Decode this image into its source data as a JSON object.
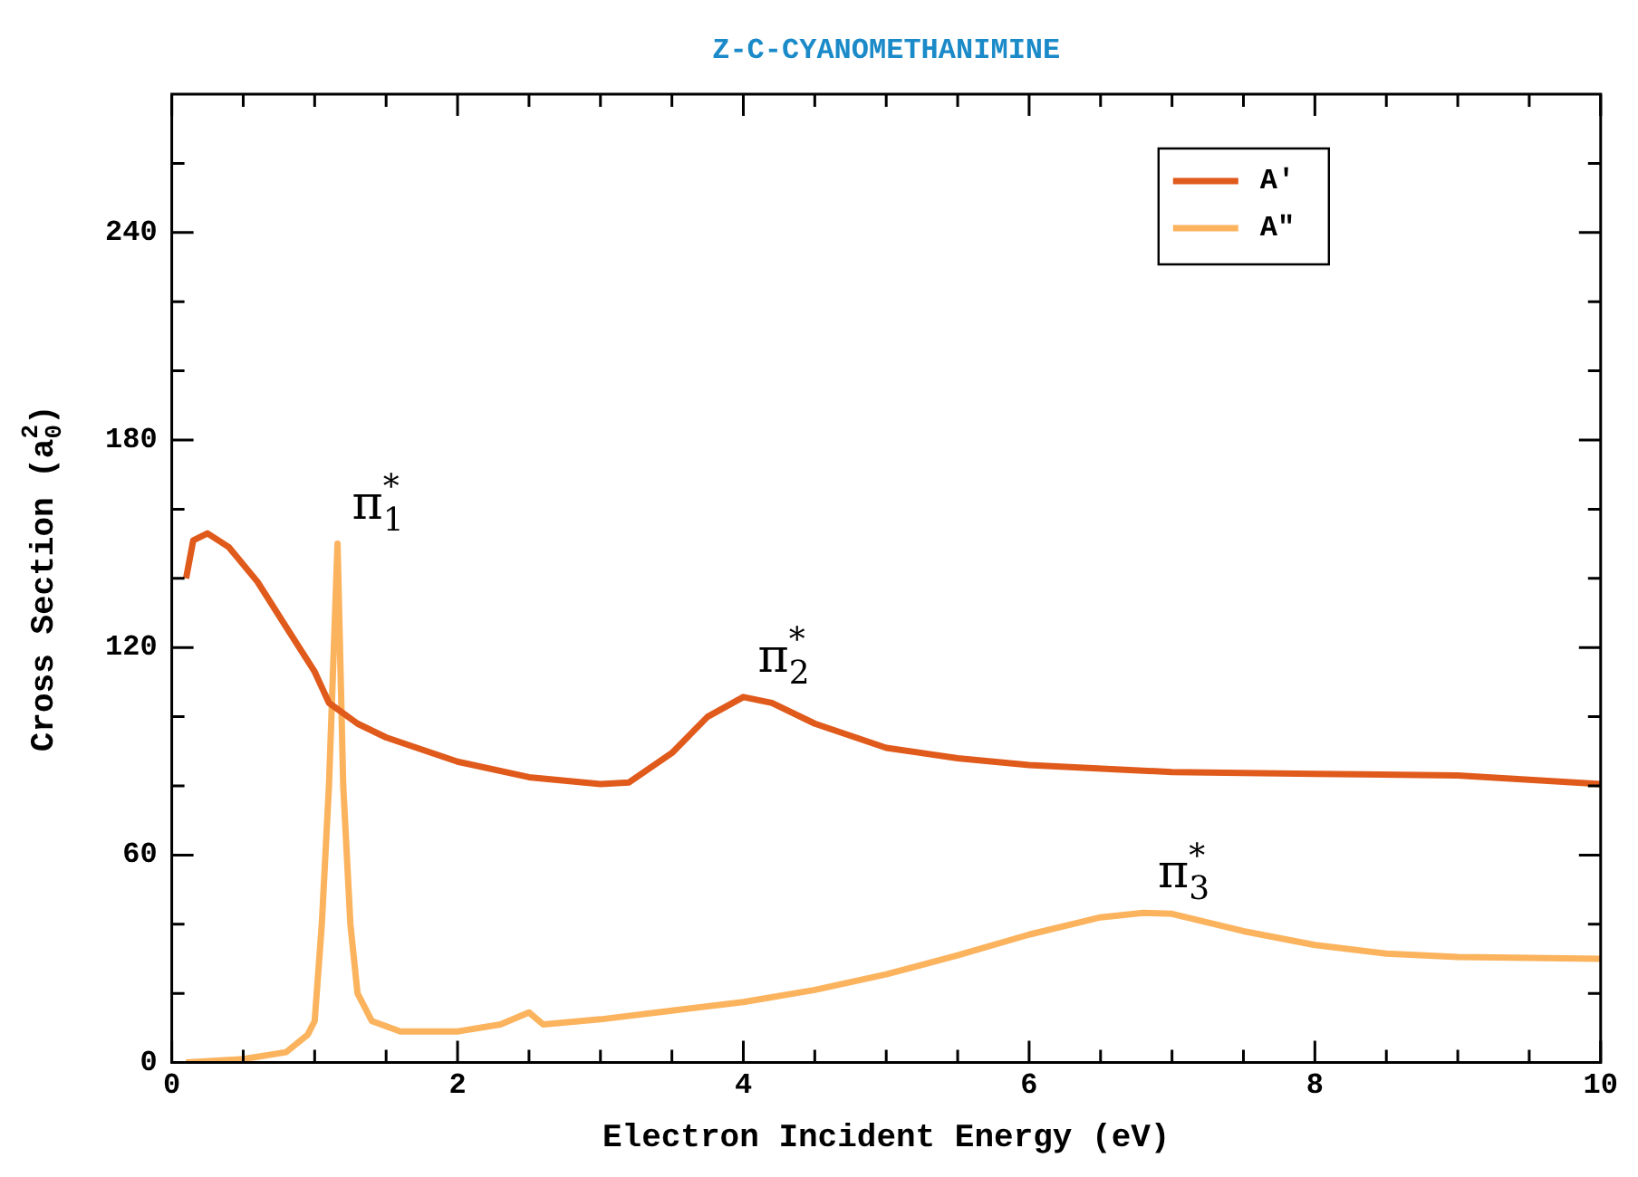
{
  "chart_data": {
    "type": "line",
    "title": "Z-C-CYANOMETHANIMINE",
    "xlabel": "Electron Incident Energy (eV)",
    "ylabel": "Cross Section (a$_{0}$$^{2}$)",
    "xlim": [
      0,
      10
    ],
    "xticks": [
      0,
      {
        "value": 0.5,
        "label": null
      },
      {
        "value": 1,
        "label": null
      },
      {
        "value": 1.5,
        "label": null
      },
      2,
      {
        "value": 2.5,
        "label": null
      },
      {
        "value": 3,
        "label": null
      },
      {
        "value": 3.5,
        "label": null
      },
      4,
      {
        "value": 4.5,
        "label": null
      },
      {
        "value": 5,
        "label": null
      },
      {
        "value": 5.5,
        "label": null
      },
      6,
      {
        "value": 6.5,
        "label": null
      },
      {
        "value": 7,
        "label": null
      },
      {
        "value": 7.5,
        "label": null
      },
      8,
      {
        "value": 8.5,
        "label": null
      },
      {
        "value": 9,
        "label": null
      },
      {
        "value": 9.5,
        "label": null
      },
      10
    ],
    "ylim": [
      0,
      280
    ],
    "yticks": [
      0,
      {
        "value": 20,
        "label": null
      },
      {
        "value": 40,
        "label": null
      },
      60,
      {
        "value": 80,
        "label": null
      },
      {
        "value": 100,
        "label": null
      },
      120,
      {
        "value": 140,
        "label": null
      },
      {
        "value": 160,
        "label": null
      },
      180,
      {
        "value": 200,
        "label": null
      },
      {
        "value": 220,
        "label": null
      },
      240,
      {
        "value": 260,
        "label": null
      }
    ],
    "legend": "top right",
    "grid": false,
    "marker": "none",
    "line_style": "solid",
    "series": [
      {
        "name": "A′",
        "color": "#e05a1c",
        "x": [
          0.1,
          0.15,
          0.25,
          0.4,
          0.6,
          0.8,
          1.0,
          1.1,
          1.3,
          1.5,
          2,
          2.5,
          3,
          3.2,
          3.5,
          3.75,
          4,
          4.2,
          4.5,
          5,
          5.5,
          6,
          7,
          8,
          9,
          10
        ],
        "values": [
          140,
          151,
          153,
          149,
          139,
          126,
          113,
          104,
          98,
          94,
          87,
          82.5,
          80.5,
          81,
          89.5,
          100,
          105.7,
          104,
          98,
          91,
          88,
          86,
          84,
          83.5,
          83,
          80.5
        ]
      },
      {
        "name": "A″",
        "color": "#fbb35e",
        "x": [
          0.1,
          0.5,
          0.8,
          0.95,
          1.0,
          1.05,
          1.1,
          1.16,
          1.2,
          1.25,
          1.3,
          1.4,
          1.6,
          2,
          2.3,
          2.5,
          2.6,
          3,
          3.5,
          4,
          4.5,
          5,
          5.5,
          6,
          6.5,
          6.8,
          7,
          7.5,
          8,
          8.5,
          9,
          10
        ],
        "values": [
          0,
          1,
          3,
          8,
          12,
          40,
          80,
          150,
          80,
          40,
          20,
          12,
          9,
          9,
          11,
          14.5,
          11,
          12.5,
          15,
          17.5,
          21,
          25.5,
          31,
          37,
          42,
          43.3,
          43,
          38,
          34,
          31.5,
          30.5,
          30
        ]
      }
    ],
    "annotations": [
      {
        "text": "π$_{1}$$^{*}$",
        "x": 1.16,
        "y": 150
      },
      {
        "text": "π$_{2}$$^{*}$",
        "x": 4,
        "y": 105.7
      },
      {
        "text": "π$_{3}$$^{*}$",
        "x": 6.8,
        "y": 43.3
      }
    ]
  }
}
